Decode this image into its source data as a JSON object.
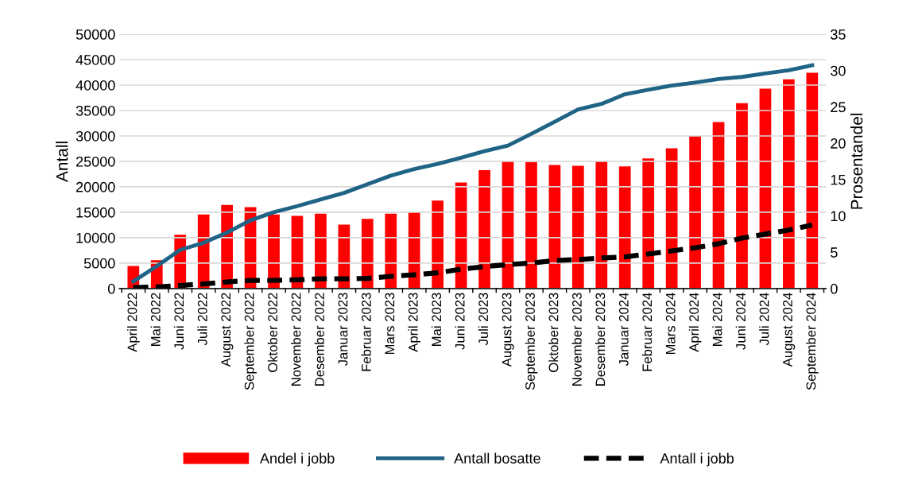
{
  "chart_data": {
    "type": "bar",
    "ylabel": "Antall",
    "y2label": "Prosentandel",
    "categories": [
      "April 2022",
      "Mai 2022",
      "Juni 2022",
      "Juli 2022",
      "August 2022",
      "September 2022",
      "Oktober 2022",
      "November 2022",
      "Desember 2022",
      "Januar 2023",
      "Februar 2023",
      "Mars 2023",
      "April 2023",
      "Mai 2023",
      "Juni 2023",
      "Juli 2023",
      "August 2023",
      "September 2023",
      "Oktober 2023",
      "November 2023",
      "Desember 2023",
      "Januar 2024",
      "Februar 2024",
      "Mars 2024",
      "April 2024",
      "Mai 2024",
      "Juni 2024",
      "Juli 2024",
      "August 2024",
      "September 2024"
    ],
    "series": [
      {
        "name": "Andel i jobb",
        "axis": "y2",
        "color": "#ff0000",
        "values": [
          3.1,
          3.9,
          7.4,
          10.2,
          11.5,
          11.2,
          10.2,
          10.0,
          10.3,
          8.8,
          9.6,
          10.3,
          10.6,
          12.1,
          14.6,
          16.3,
          17.6,
          17.4,
          17.0,
          16.9,
          17.6,
          16.8,
          17.9,
          19.3,
          21.0,
          22.9,
          25.5,
          27.5,
          28.8,
          29.7
        ]
      },
      {
        "name": "Antall bosatte",
        "type": "line",
        "axis": "y",
        "color": "#1f6385",
        "line_style": "solid",
        "values": [
          1400,
          4400,
          7600,
          9000,
          11000,
          13400,
          15000,
          16200,
          17500,
          18800,
          20500,
          22200,
          23500,
          24500,
          25700,
          27000,
          28100,
          30400,
          32800,
          35200,
          36300,
          38200,
          39100,
          39900,
          40500,
          41200,
          41600,
          42300,
          42900,
          43900
        ]
      },
      {
        "name": "Antall i jobb",
        "type": "line",
        "axis": "y",
        "color": "#000000",
        "line_style": "dashed",
        "values": [
          200,
          300,
          600,
          900,
          1300,
          1600,
          1600,
          1700,
          1900,
          1900,
          2000,
          2400,
          2700,
          3100,
          3800,
          4300,
          4700,
          5000,
          5500,
          5700,
          6000,
          6200,
          6800,
          7400,
          8000,
          8800,
          9900,
          10700,
          11500,
          12500
        ]
      }
    ],
    "ylim": [
      0,
      50000
    ],
    "yticks": [
      0,
      5000,
      10000,
      15000,
      20000,
      25000,
      30000,
      35000,
      40000,
      45000,
      50000
    ],
    "y2lim": [
      0,
      35
    ],
    "y2ticks": [
      0,
      5,
      10,
      15,
      20,
      25,
      30,
      35
    ],
    "grid": "y",
    "legend": "bottom",
    "marker": "none"
  }
}
